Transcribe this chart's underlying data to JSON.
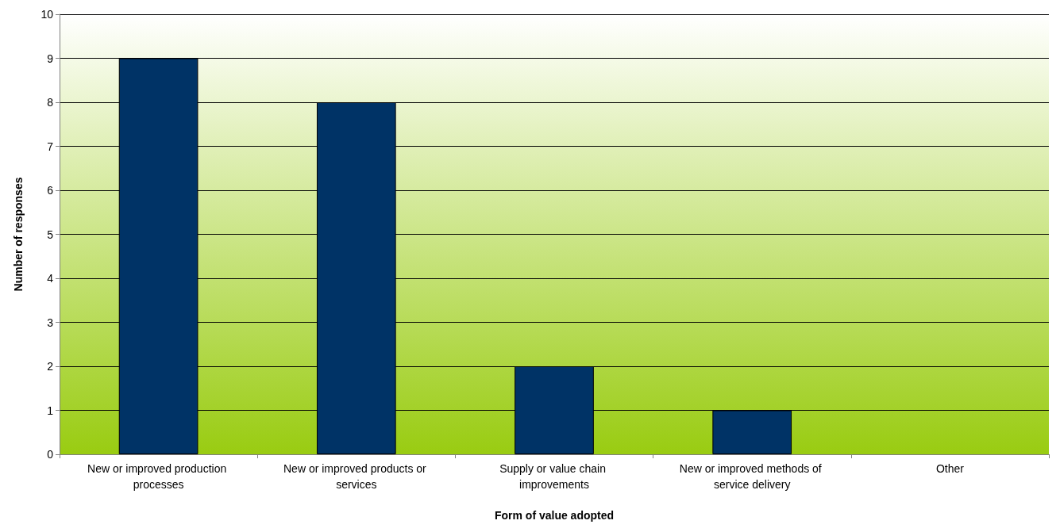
{
  "chart_data": {
    "type": "bar",
    "xlabel": "Form of value adopted",
    "ylabel": "Number of responses",
    "categories": [
      "New or improved production processes",
      "New or improved products or services",
      "Supply or value chain improvements",
      "New or improved methods of service delivery",
      "Other"
    ],
    "values": [
      9,
      8,
      2,
      1,
      0
    ],
    "color": "#003366",
    "ylim": [
      0,
      10
    ],
    "yticks": [
      0,
      1,
      2,
      3,
      4,
      5,
      6,
      7,
      8,
      9,
      10
    ],
    "grid": "y"
  }
}
